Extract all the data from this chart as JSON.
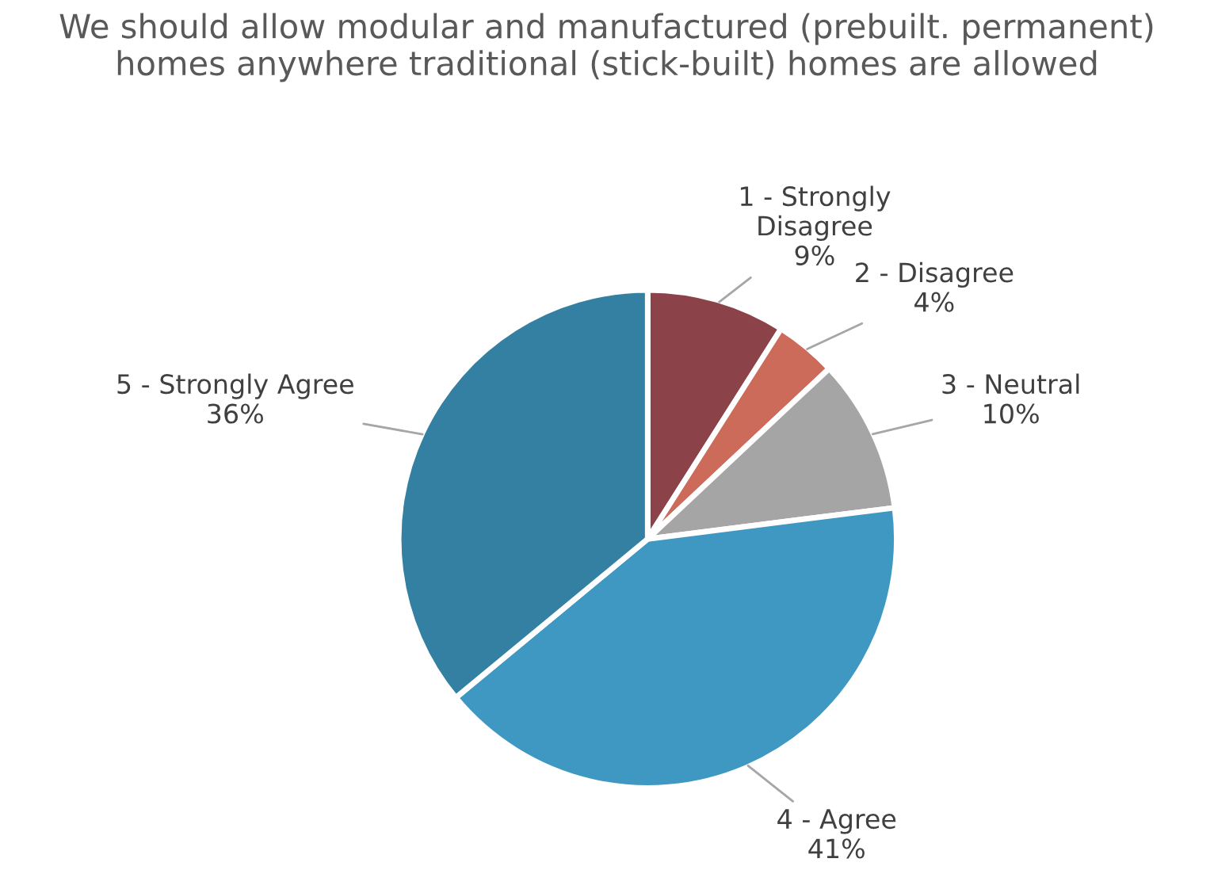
{
  "chart_data": {
    "type": "pie",
    "title": "We should allow modular and manufactured (prebuilt. permanent) homes anywhere traditional (stick-built) homes are allowed",
    "categories": [
      "1 - Strongly\nDisagree",
      "2 - Disagree",
      "3 - Neutral",
      "4 - Agree",
      "5 - Strongly Agree"
    ],
    "values": [
      9,
      4,
      10,
      41,
      36
    ],
    "value_labels": [
      "9%",
      "4%",
      "10%",
      "41%",
      "36%"
    ],
    "colors": [
      "#8b4249",
      "#cd6b5b",
      "#a5a5a5",
      "#3f98c2",
      "#3480a2"
    ]
  }
}
